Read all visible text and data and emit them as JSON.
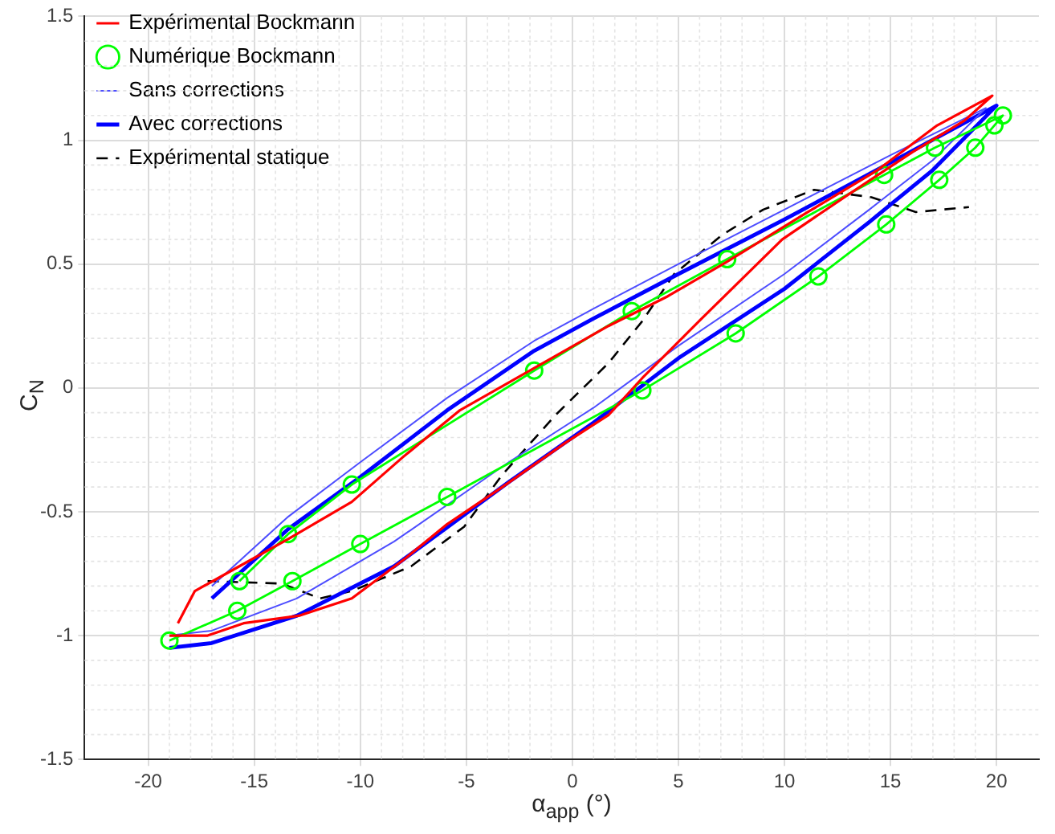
{
  "chart_data": {
    "type": "line",
    "xlabel": "α$_{app}$ (°)",
    "ylabel": "C$_{N}$",
    "xlim": [
      -23,
      22
    ],
    "ylim": [
      -1.5,
      1.5
    ],
    "xticks": [
      -20,
      -15,
      -10,
      -5,
      0,
      5,
      10,
      15,
      20
    ],
    "yticks": [
      -1.5,
      -1,
      -0.5,
      0,
      0.5,
      1,
      1.5
    ],
    "grid": true,
    "legend": "top left",
    "marker": "none",
    "line_style": "solid",
    "series": [
      {
        "name": "Expérimental Bockmann",
        "color": "#ff0000",
        "x": [
          -19,
          -17.2,
          -15.5,
          -12.9,
          -10.4,
          -7.9,
          -5.9,
          -3.3,
          -0.3,
          1.7,
          3.3,
          6.1,
          9.9,
          13,
          16,
          18.5,
          19.8,
          18.5,
          17.2,
          14.4,
          11.1,
          7.3,
          4.5,
          1.7,
          -1.8,
          -5.3,
          -8,
          -10.4,
          -13.4,
          -15.7,
          -17.8,
          -18.6
        ],
        "values": [
          -1,
          -1,
          -0.95,
          -0.92,
          -0.85,
          -0.69,
          -0.55,
          -0.4,
          -0.22,
          -0.11,
          0.04,
          0.28,
          0.6,
          0.78,
          0.95,
          1.08,
          1.18,
          1.12,
          1.06,
          0.88,
          0.71,
          0.51,
          0.37,
          0.25,
          0.08,
          -0.09,
          -0.28,
          -0.46,
          -0.61,
          -0.72,
          -0.82,
          -0.95
        ]
      },
      {
        "name": "Numérique Bockmann",
        "color": "#00ff00",
        "marker": "circle",
        "x": [
          -19,
          -15.8,
          -13.2,
          -10,
          -5.9,
          3.3,
          7.7,
          11.6,
          14.8,
          17.3,
          19,
          19.9,
          20.3,
          17.1,
          14.7,
          7.3,
          2.8,
          -1.8,
          -10.4,
          -13.4,
          -15.7
        ],
        "values": [
          -1.02,
          -0.9,
          -0.78,
          -0.63,
          -0.44,
          -0.01,
          0.22,
          0.45,
          0.66,
          0.84,
          0.97,
          1.06,
          1.1,
          0.97,
          0.86,
          0.52,
          0.31,
          0.07,
          -0.39,
          -0.59,
          -0.78
        ]
      },
      {
        "name": "Sans corrections",
        "color": "#4d4dff",
        "x": [
          -19,
          -17,
          -13,
          -8.4,
          -3,
          1,
          5,
          10,
          14,
          17,
          19.5,
          15,
          10,
          5,
          1,
          -1.8,
          -5.9,
          -10,
          -13.4,
          -17
        ],
        "values": [
          -1,
          -0.98,
          -0.85,
          -0.62,
          -0.3,
          -0.08,
          0.17,
          0.46,
          0.72,
          0.92,
          1.13,
          0.94,
          0.72,
          0.5,
          0.32,
          0.19,
          -0.04,
          -0.3,
          -0.52,
          -0.8
        ]
      },
      {
        "name": "Avec corrections",
        "color": "#0000ff",
        "x": [
          -19,
          -17,
          -13,
          -8.4,
          -3,
          1,
          5,
          10,
          14,
          17,
          20,
          15,
          10,
          5,
          1,
          -1.8,
          -5.9,
          -10,
          -13.4,
          -17
        ],
        "values": [
          -1.05,
          -1.03,
          -0.92,
          -0.72,
          -0.38,
          -0.14,
          0.12,
          0.4,
          0.67,
          0.88,
          1.14,
          0.91,
          0.68,
          0.46,
          0.28,
          0.15,
          -0.09,
          -0.36,
          -0.57,
          -0.85
        ]
      },
      {
        "name": "Expérimental statique",
        "color": "#000000",
        "line_style": "dashed",
        "x": [
          -17.2,
          -13.7,
          -11.9,
          -10.4,
          -7.6,
          -5.1,
          -3.3,
          -0.8,
          1.7,
          3.3,
          4.8,
          7.1,
          9,
          11.4,
          14.1,
          16.2,
          18.7
        ],
        "values": [
          -0.78,
          -0.79,
          -0.85,
          -0.82,
          -0.72,
          -0.56,
          -0.35,
          -0.11,
          0.1,
          0.27,
          0.46,
          0.62,
          0.72,
          0.8,
          0.77,
          0.71,
          0.73
        ]
      }
    ]
  }
}
